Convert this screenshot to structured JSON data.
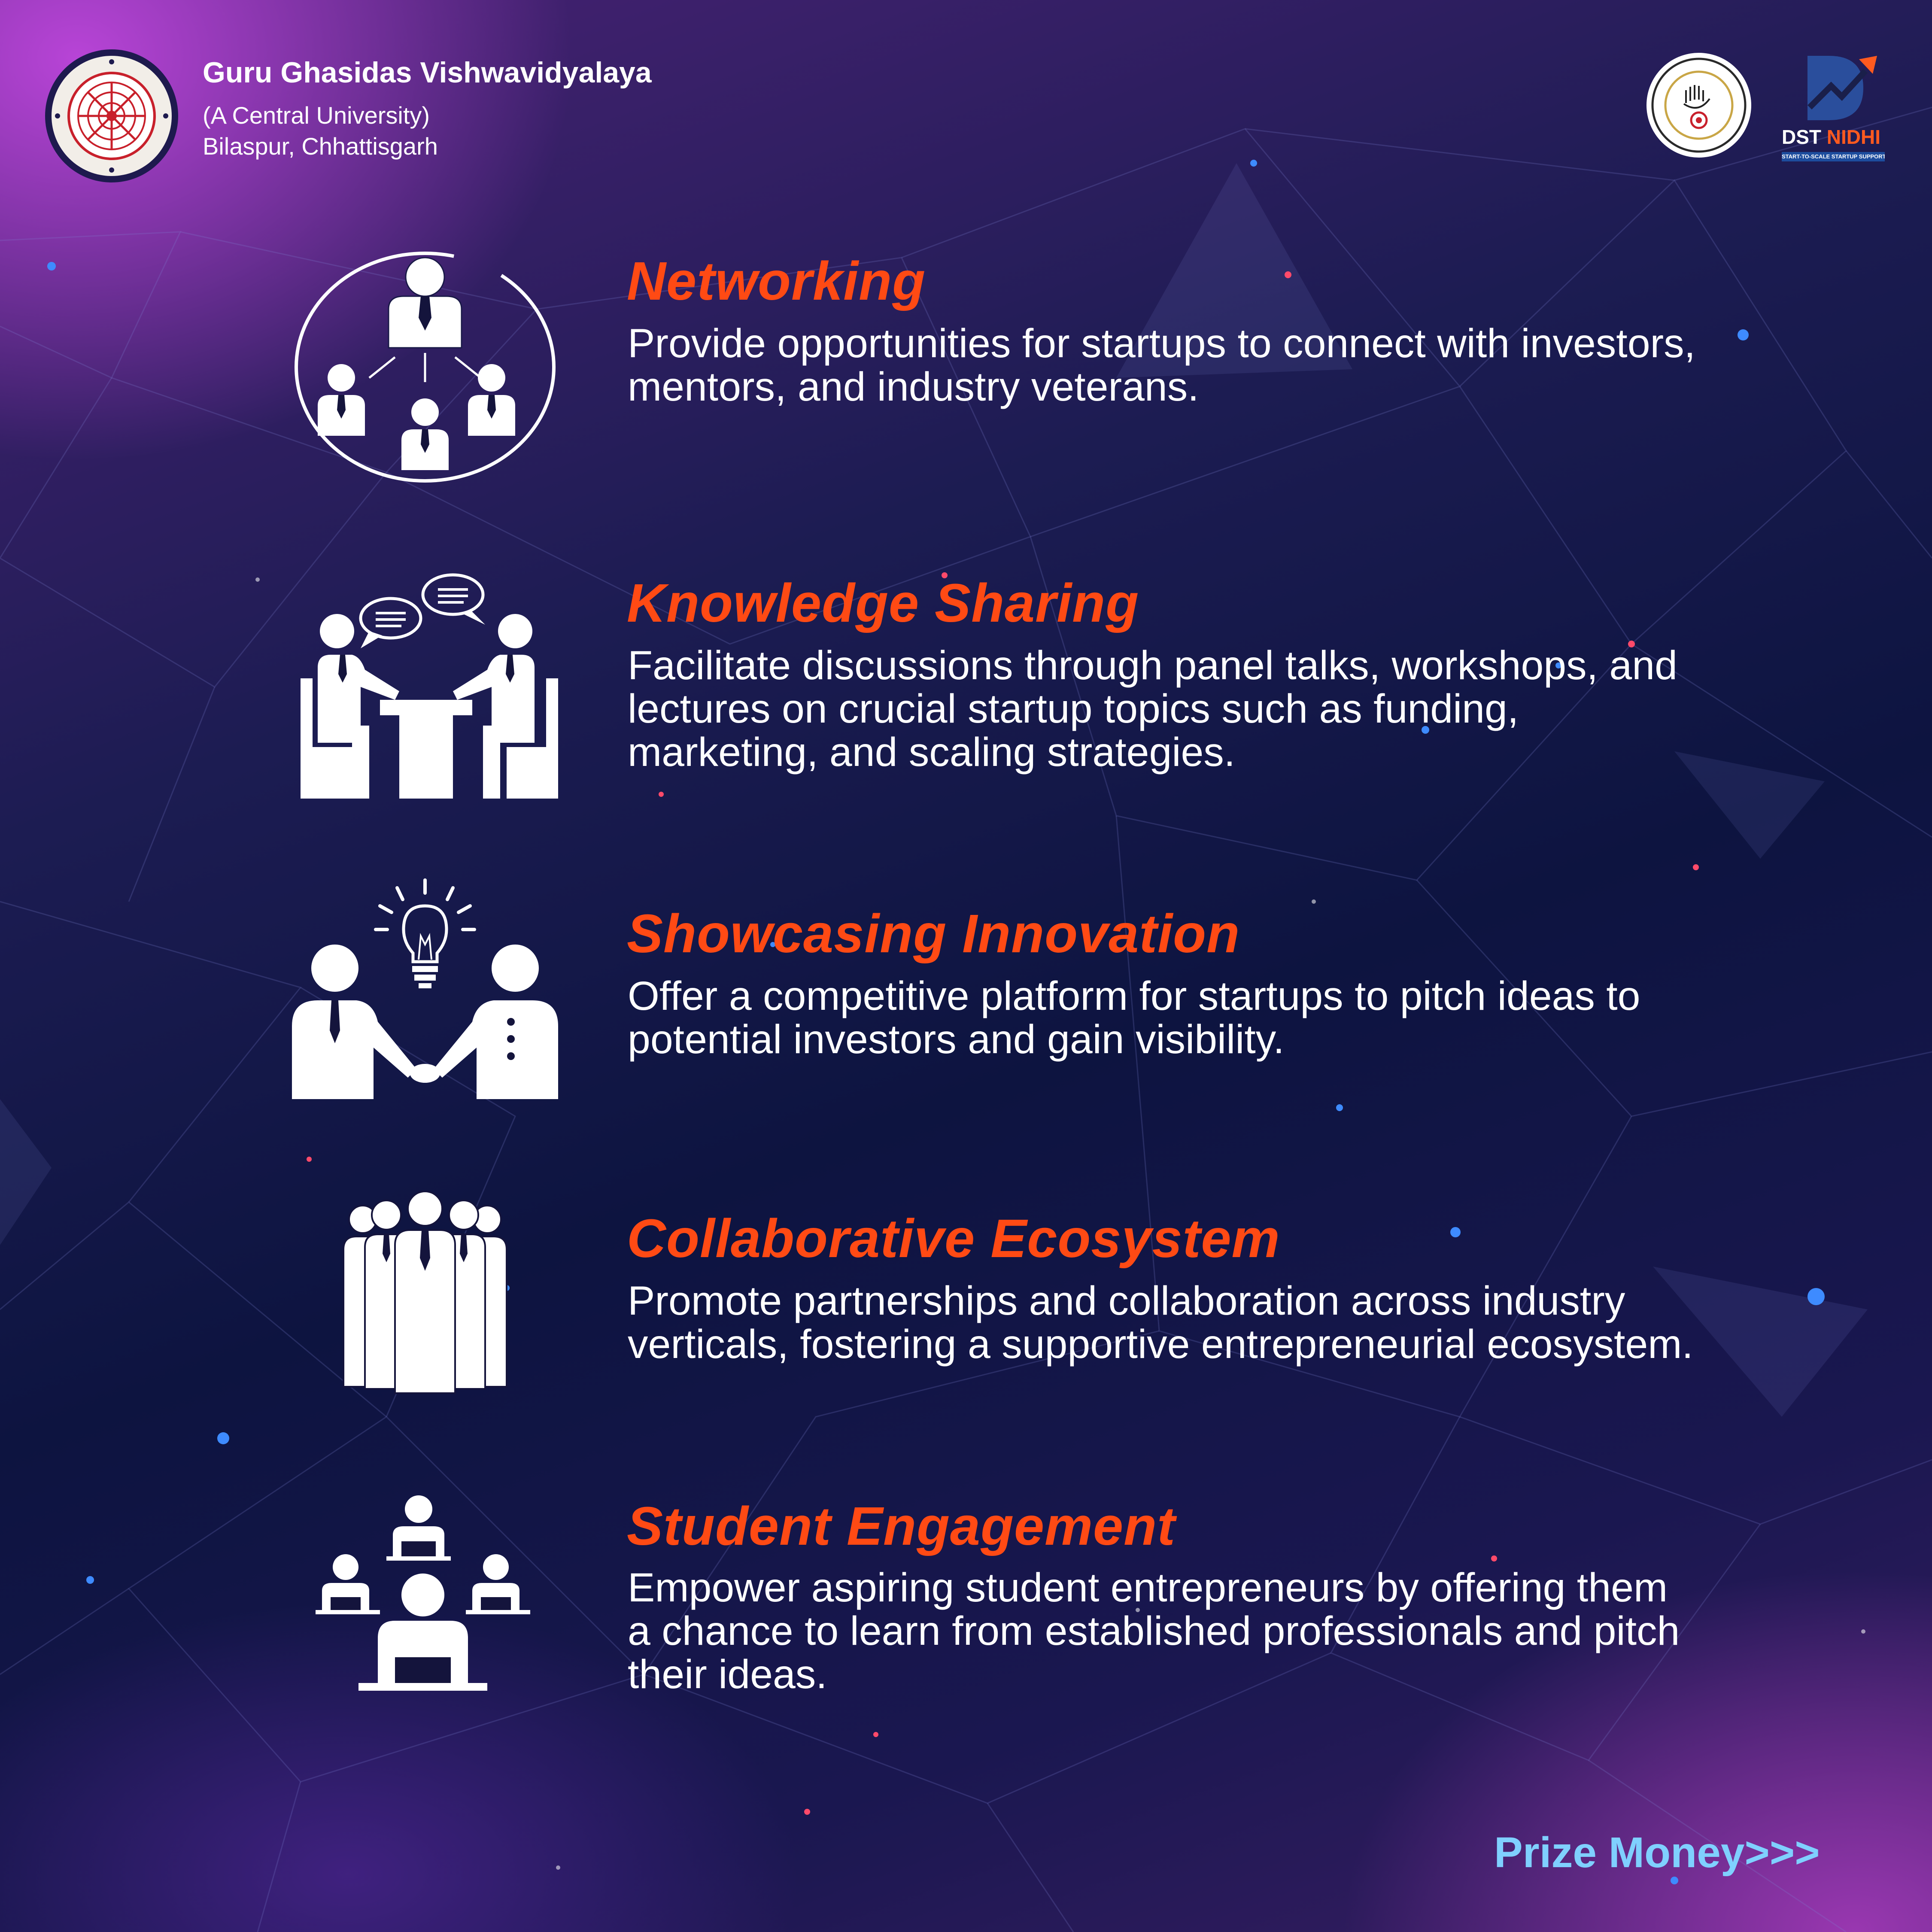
{
  "header": {
    "university_name": "Guru Ghasidas Vishwavidyalaya",
    "university_type": "(A Central University)",
    "university_location": "Bilaspur, Chhattisgarh",
    "university_logo_text": "GURU GHASIDAS VISHWAVIDYALAYA, BILASPUR (C.G.)",
    "ggv_logo_text": "GGV STARTUP FOUNDATION",
    "dst_brand": "DST",
    "dst_brand_highlight": "NIDHI",
    "dst_tagline": "START-TO-SCALE STARTUP SUPPORT"
  },
  "features": [
    {
      "icon": "networking-icon",
      "title": "Networking",
      "description": "Provide opportunities for startups to connect with investors, mentors, and industry veterans."
    },
    {
      "icon": "knowledge-sharing-icon",
      "title": "Knowledge Sharing",
      "description": "Facilitate discussions through panel talks, workshops, and lectures on crucial startup topics such as funding, marketing, and scaling strategies."
    },
    {
      "icon": "innovation-handshake-icon",
      "title": "Showcasing Innovation",
      "description": "Offer a competitive platform for startups to pitch ideas to potential investors and gain visibility."
    },
    {
      "icon": "team-group-icon",
      "title": "Collaborative Ecosystem",
      "description": "Promote partnerships and collaboration across industry verticals, fostering a supportive entrepreneurial ecosystem."
    },
    {
      "icon": "students-laptops-icon",
      "title": "Student Engagement",
      "description": "Empower aspiring student entrepreneurs by offering them a chance to learn from established professionals and pitch their ideas."
    }
  ],
  "footer": {
    "next_label": "Prize Money>>>"
  },
  "colors": {
    "accent": "#ff4a14",
    "link": "#7fd0ff",
    "text": "#ffffff"
  }
}
